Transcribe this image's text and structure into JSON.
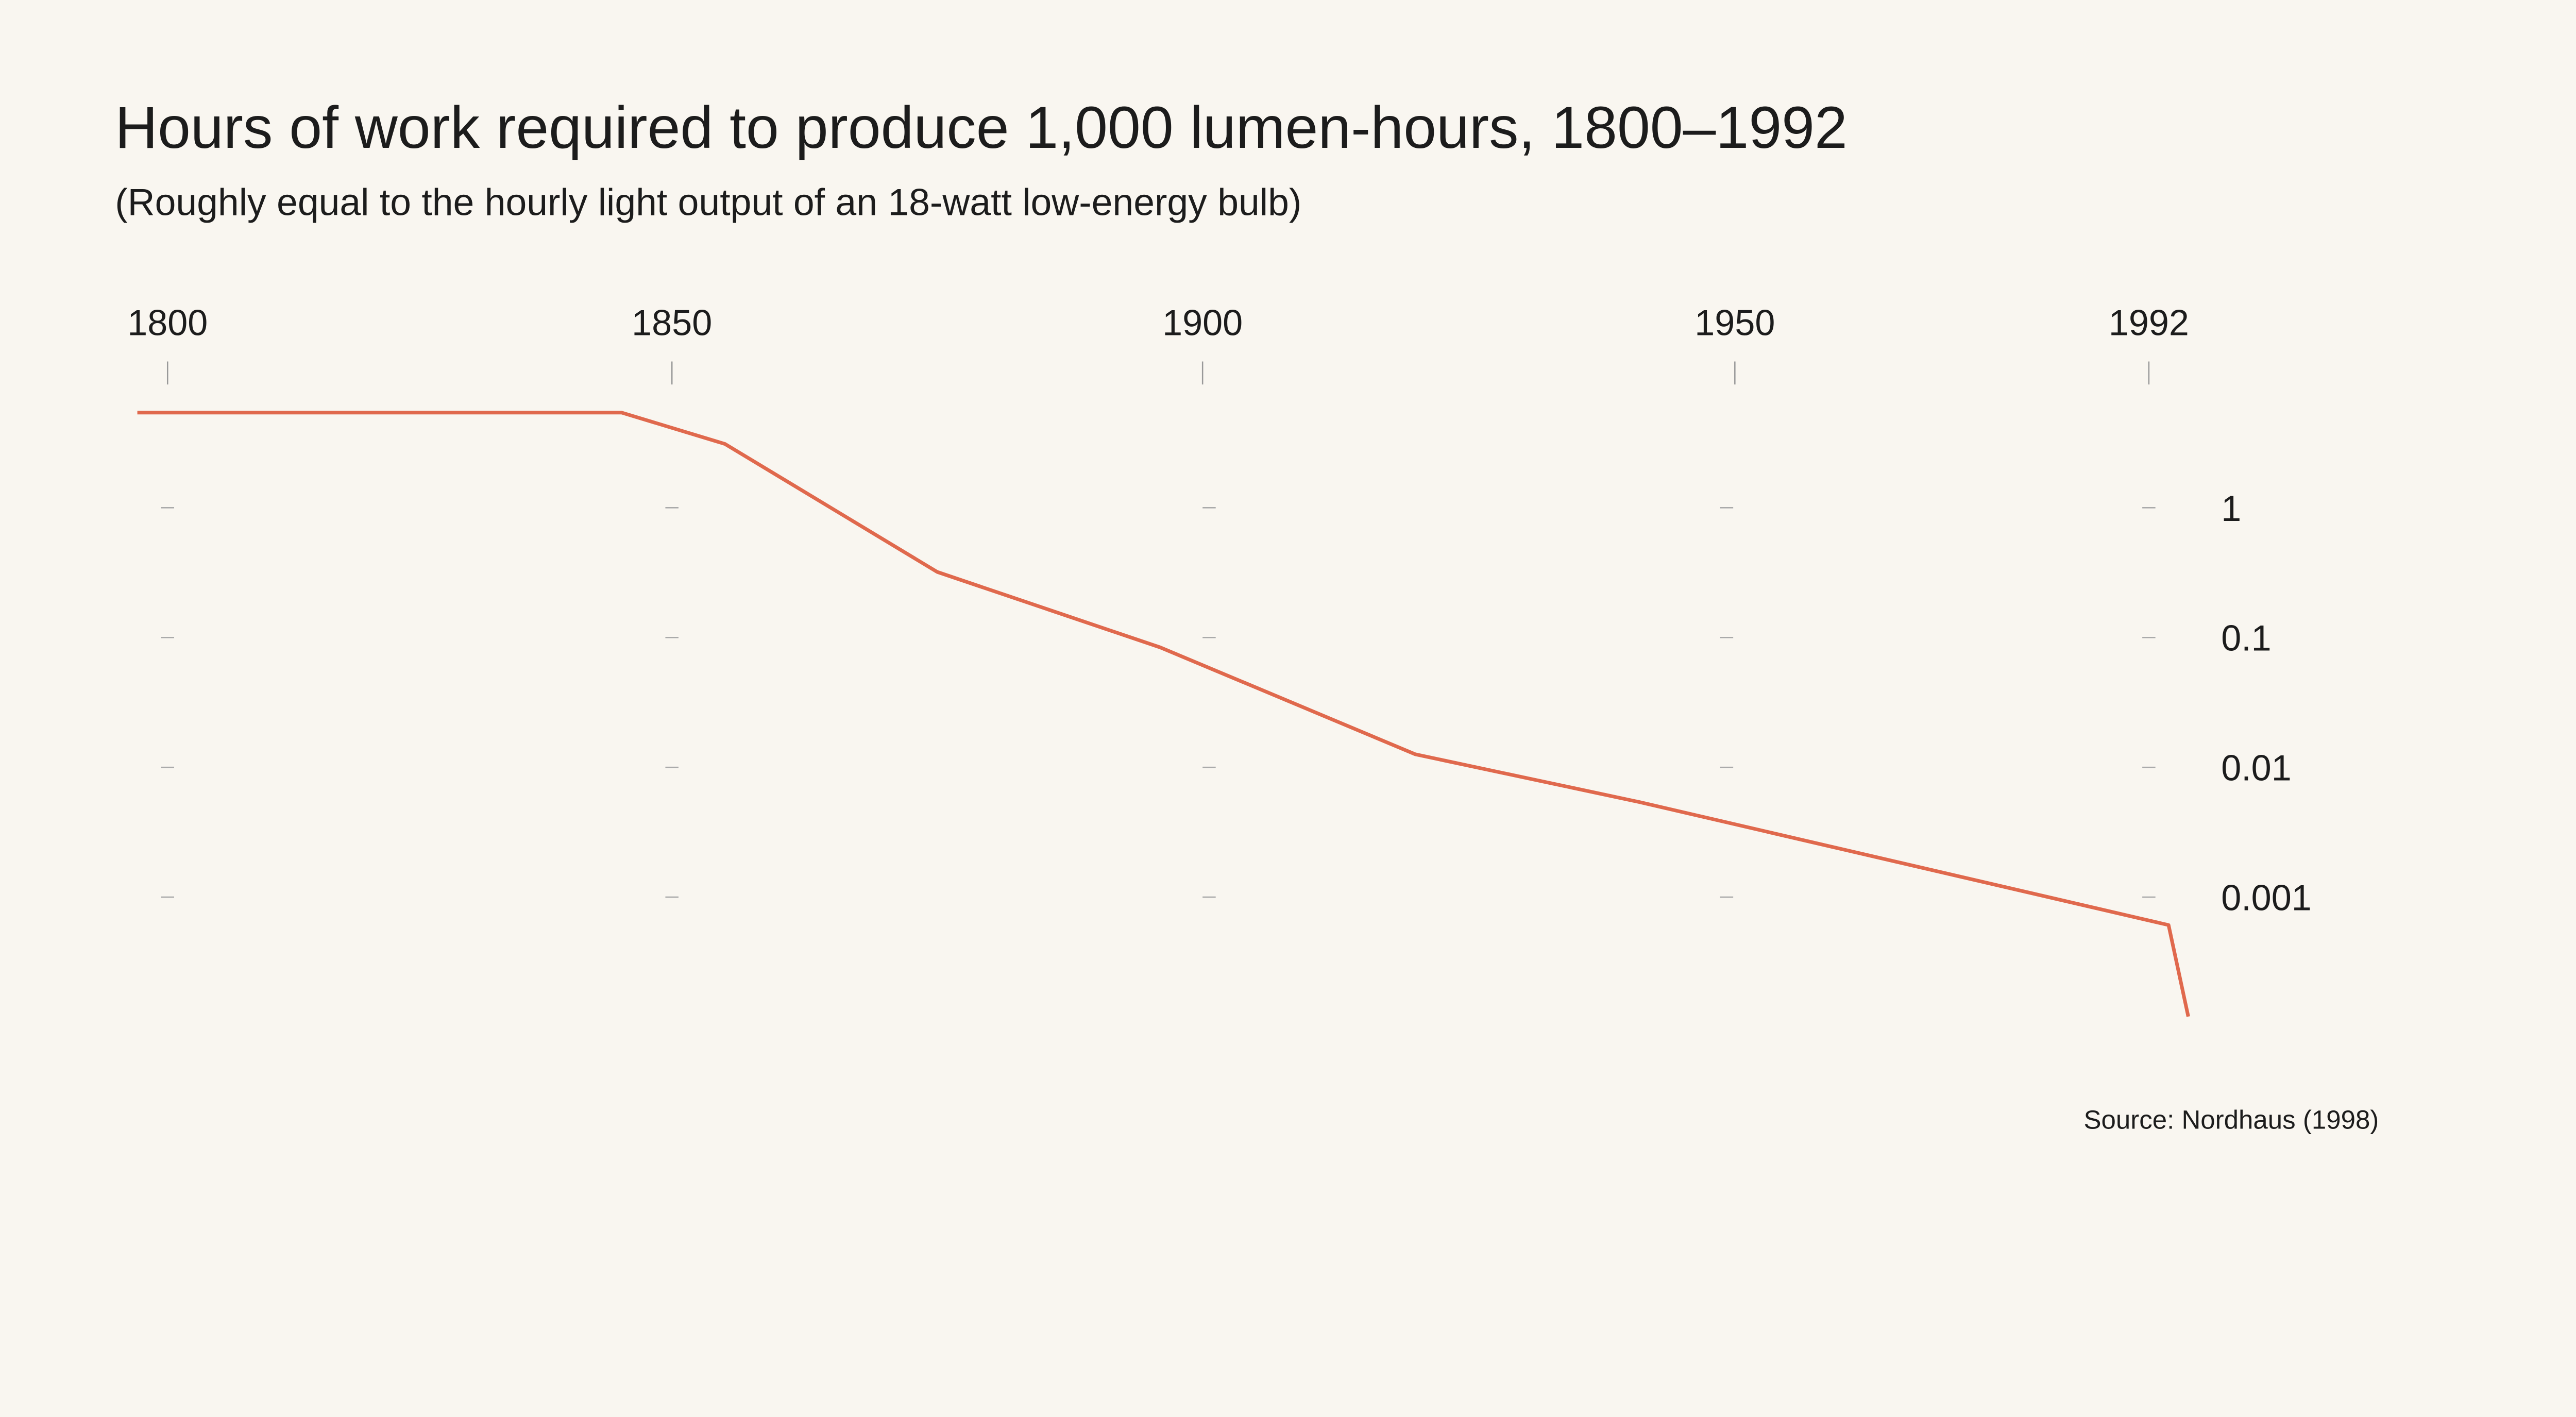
{
  "chart_data": {
    "type": "line",
    "title": "Hours of work required to produce 1,000 lumen-hours, 1800–1992",
    "subtitle": "(Roughly equal to the hourly light output of an 18-watt low-energy bulb)",
    "source": "Source: Nordhaus (1998)",
    "x_ticks": [
      1800,
      1850,
      1900,
      1950,
      1992
    ],
    "x_tick_labels": [
      "1800",
      "1850",
      "1900",
      "1950",
      "1992"
    ],
    "x_position": "top",
    "y_scale": "log",
    "y_ticks": [
      1,
      0.1,
      0.01,
      0.001
    ],
    "y_tick_labels": [
      "1",
      "0.1",
      "0.01",
      "0.001"
    ],
    "y_position": "right",
    "grid": false,
    "line_color": "#e0694d",
    "background": "#f9f6f0",
    "series": [
      {
        "x": [
          1797,
          1845,
          1855,
          1875,
          1896,
          1920,
          1941,
          1994,
          1996
        ],
        "y": [
          5.4,
          5.4,
          3.1,
          0.32,
          0.084,
          0.0126,
          0.0054,
          0.00061,
          0.00012
        ]
      }
    ]
  }
}
